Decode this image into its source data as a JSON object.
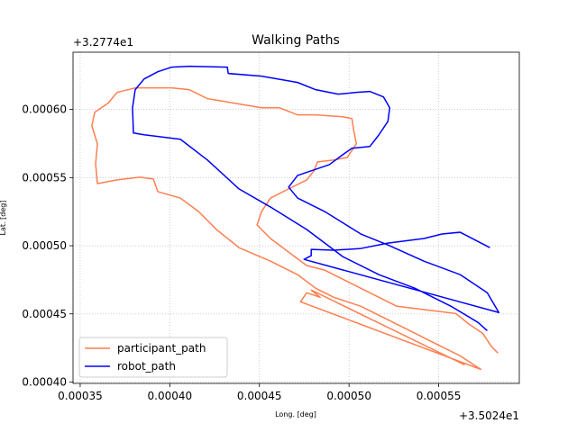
{
  "chart_data": {
    "type": "line",
    "title": "Walking Paths",
    "xlabel": "Long. [deg]",
    "ylabel": "Lat. [deg]",
    "x_offset": "+3.5024e1",
    "y_offset": "+3.2774e1",
    "xlim": [
      0.000346,
      0.000595
    ],
    "ylim": [
      0.000399,
      0.000642
    ],
    "xticks": [
      0.00035,
      {
        "value": 0.0004,
        "label": "0.00040"
      },
      0.00045,
      {
        "value": 0.0005,
        "label": "0.00050"
      },
      0.00055
    ],
    "yticks": [
      {
        "value": 0.0004,
        "label": "0.00040"
      },
      0.00045,
      {
        "value": 0.0005,
        "label": "0.00050"
      },
      0.00055,
      {
        "value": 0.0006,
        "label": "0.00060"
      }
    ],
    "grid": true,
    "legend": "lower left",
    "series": [
      {
        "name": "participant_path",
        "color": "#ff7f50",
        "x": [
          0.0005831,
          0.0005796,
          0.0005746,
          0.000567,
          0.0005595,
          0.0005469,
          0.0005267,
          0.0005066,
          0.0004864,
          0.0004764,
          0.0004663,
          0.0004562,
          0.0004487,
          0.0004512,
          0.0004562,
          0.0004663,
          0.0004764,
          0.0004804,
          0.0004824,
          0.0004915,
          0.000499,
          0.0005041,
          0.0005026,
          0.0005016,
          0.0004965,
          0.0004814,
          0.0004713,
          0.0004613,
          0.0004512,
          0.0004361,
          0.000421,
          0.0004109,
          0.0004009,
          0.0003807,
          0.0003706,
          0.0003656,
          0.0003581,
          0.0003565,
          0.0003596,
          0.0003586,
          0.0003596,
          0.0003706,
          0.0003832,
          0.0003908,
          0.0003933,
          0.0004059,
          0.000416,
          0.000426,
          0.0004386,
          0.0004562,
          0.0004713,
          0.0004814,
          0.0004915,
          0.0005066,
          0.0005318,
          0.0005469,
          0.000562,
          0.0005735,
          0.0004729,
          0.0004764,
          0.0004839,
          0.0004789,
          0.0005645
        ],
        "values": [
          0.0004212,
          0.0004258,
          0.0004357,
          0.0004424,
          0.0004503,
          0.0004523,
          0.0004556,
          0.0004688,
          0.0004821,
          0.0004854,
          0.0004953,
          0.0005053,
          0.0005152,
          0.0005251,
          0.000535,
          0.0005417,
          0.0005483,
          0.0005549,
          0.0005615,
          0.0005629,
          0.0005648,
          0.0005748,
          0.0005847,
          0.0005933,
          0.0005946,
          0.000596,
          0.000596,
          0.0006012,
          0.0006012,
          0.0006046,
          0.0006079,
          0.0006145,
          0.0006158,
          0.0006158,
          0.0006125,
          0.0006046,
          0.0005979,
          0.000588,
          0.0005748,
          0.0005602,
          0.0005456,
          0.0005483,
          0.0005503,
          0.000549,
          0.0005397,
          0.000535,
          0.0005251,
          0.0005119,
          0.0004986,
          0.0004887,
          0.0004788,
          0.0004688,
          0.0004622,
          0.0004556,
          0.0004391,
          0.0004291,
          0.0004192,
          0.0004093,
          0.0004589,
          0.0004655,
          0.0004622,
          0.0004675,
          0.0004126
        ]
      },
      {
        "name": "robot_path",
        "color": "#0000ff",
        "x": [
          0.0005786,
          0.000562,
          0.0005519,
          0.0005418,
          0.0005217,
          0.0005066,
          0.0004915,
          0.0004789,
          0.0004789,
          0.0004749,
          0.0005836,
          0.0005771,
          0.000562,
          0.0005418,
          0.0005217,
          0.0005066,
          0.0004864,
          0.0004713,
          0.0004663,
          0.0004713,
          0.000489,
          0.0004965,
          0.0005016,
          0.0005116,
          0.0005167,
          0.0005217,
          0.0005227,
          0.0005192,
          0.0005116,
          0.0005041,
          0.000494,
          0.0004814,
          0.0004713,
          0.0004512,
          0.0004326,
          0.0004321,
          0.0004109,
          0.0004009,
          0.0003933,
          0.0003857,
          0.0003807,
          0.0003792,
          0.0003797,
          0.0003857,
          0.0004059,
          0.000421,
          0.0004386,
          0.0004562,
          0.0004764,
          0.0004965,
          0.0005167,
          0.0005368,
          0.0005569,
          0.000572,
          0.0005771
        ],
        "values": [
          0.0004986,
          0.0005099,
          0.0005086,
          0.0005053,
          0.0005019,
          0.000498,
          0.0004967,
          0.0004973,
          0.0004927,
          0.00049,
          0.000451,
          0.0004655,
          0.0004788,
          0.0004887,
          0.0005006,
          0.0005086,
          0.0005251,
          0.000535,
          0.000543,
          0.0005516,
          0.0005595,
          0.0005668,
          0.0005715,
          0.0005728,
          0.0005814,
          0.0005913,
          0.0006012,
          0.0006092,
          0.0006132,
          0.0006125,
          0.0006112,
          0.0006145,
          0.0006198,
          0.0006244,
          0.0006264,
          0.000631,
          0.0006317,
          0.000631,
          0.0006277,
          0.0006224,
          0.0006145,
          0.0006012,
          0.0005827,
          0.0005814,
          0.0005781,
          0.0005629,
          0.0005417,
          0.0005284,
          0.0005119,
          0.000492,
          0.0004788,
          0.0004688,
          0.0004556,
          0.0004437,
          0.0004377
        ]
      }
    ]
  }
}
